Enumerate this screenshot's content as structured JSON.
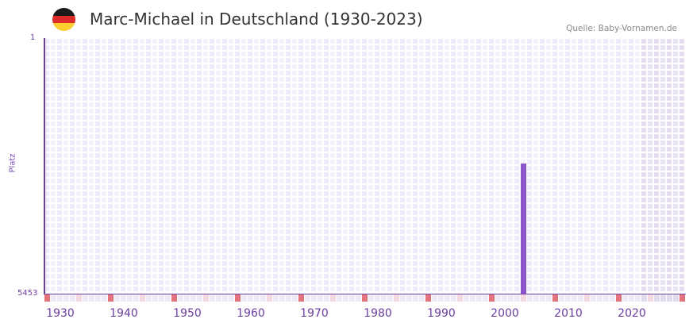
{
  "header": {
    "title": "Marc-Michael in Deutschland (1930-2023)",
    "source": "Quelle: Baby-Vornamen.de",
    "flag_icon": "germany-flag-icon",
    "flag_colors": [
      "#1a1a1a",
      "#dd2a2a",
      "#fcce2e"
    ]
  },
  "axes": {
    "y_top_label": "1",
    "y_bottom_label": "5453",
    "y_title": "Platz",
    "x_ticks": [
      "1930",
      "1940",
      "1950",
      "1960",
      "1970",
      "1980",
      "1990",
      "2000",
      "2010",
      "2020"
    ]
  },
  "colors": {
    "accent": "#6c3fa0",
    "bar": "#8c55c8",
    "marker_strong": "#e5737c",
    "marker_light": "#f5d9e0",
    "cell_a": "#efeafa",
    "cell_b": "#f4f1fc",
    "cell_shaded_a": "#e2dcee",
    "cell_shaded_b": "#e8e4f1"
  },
  "chart_data": {
    "type": "bar",
    "title": "Marc-Michael in Deutschland (1930-2023)",
    "xlabel": "",
    "ylabel": "Platz",
    "y_inverted": true,
    "ylim": [
      1,
      5453
    ],
    "x_range": [
      1928,
      2028
    ],
    "shaded_from_year": 2022,
    "x_ticks": [
      1930,
      1940,
      1950,
      1960,
      1970,
      1980,
      1990,
      2000,
      2010,
      2020
    ],
    "categories": [
      2003
    ],
    "values": [
      2676
    ],
    "series": [
      {
        "name": "Marc-Michael",
        "values": [
          {
            "year": 2003,
            "rank": 2676
          }
        ]
      }
    ],
    "grid": true,
    "legend": null
  }
}
